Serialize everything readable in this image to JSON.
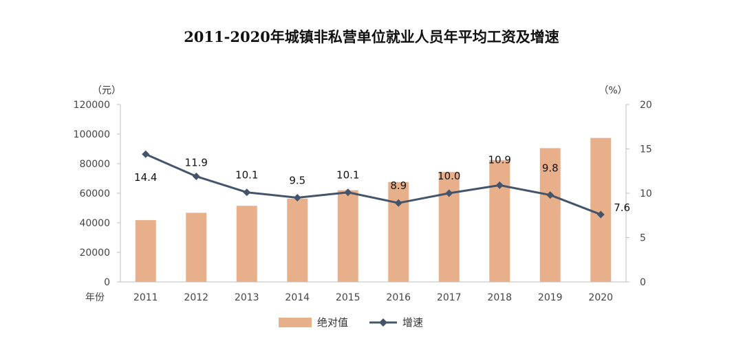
{
  "chart_data": {
    "type": "bar",
    "title": "2011-2020年城镇非私营单位就业人员年平均工资及增速",
    "xlabel": "年份",
    "y_left_unit": "（元）",
    "y_right_unit": "（%）",
    "categories": [
      "2011",
      "2012",
      "2013",
      "2014",
      "2015",
      "2016",
      "2017",
      "2018",
      "2019",
      "2020"
    ],
    "y_left_ticks": [
      0,
      20000,
      40000,
      60000,
      80000,
      100000,
      120000
    ],
    "y_right_ticks": [
      0,
      5,
      10,
      15,
      20
    ],
    "ylim_left": [
      0,
      120000
    ],
    "ylim_right": [
      0,
      20
    ],
    "series": [
      {
        "name": "绝对值",
        "kind": "bar",
        "axis": "left",
        "color": "#E8B08A",
        "values": [
          41799,
          46769,
          51483,
          56360,
          62029,
          67569,
          74318,
          82413,
          90501,
          97379
        ]
      },
      {
        "name": "增速",
        "kind": "line",
        "axis": "right",
        "color": "#44546A",
        "values": [
          14.4,
          11.9,
          10.1,
          9.5,
          10.1,
          8.9,
          10.0,
          10.9,
          9.8,
          7.6
        ],
        "labels": [
          "14.4",
          "11.9",
          "10.1",
          "9.5",
          "10.1",
          "8.9",
          "10.0",
          "10.9",
          "9.8",
          "7.6"
        ]
      }
    ],
    "legend": [
      "绝对值",
      "增速"
    ],
    "legend_position": "bottom"
  }
}
